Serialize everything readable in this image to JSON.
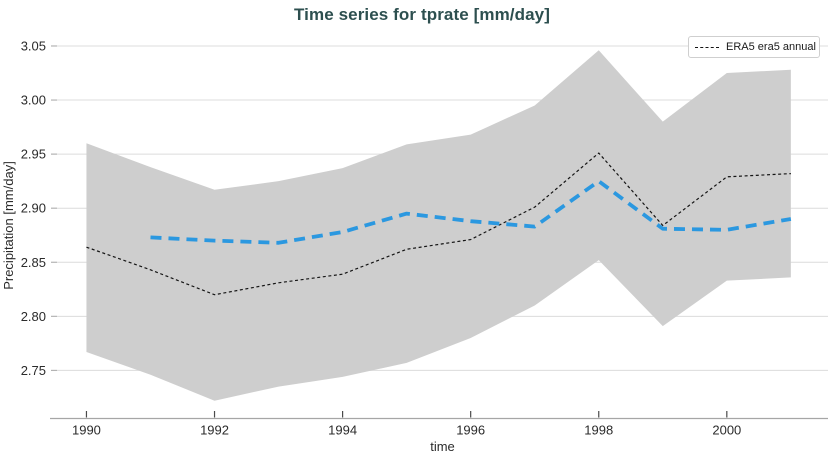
{
  "title": "Time series for tprate [mm/day]",
  "legend": {
    "label": "ERA5 era5 annual"
  },
  "colors": {
    "title": "#2d4f4f",
    "era5_line": "#141414",
    "blue_line": "#2b98e0",
    "band_fill": "#cecece",
    "gridline": "#dcdcdc",
    "axis_spine": "#a6a6a6",
    "tick_label": "#2b2b2b"
  },
  "chart_data": {
    "type": "line",
    "title": "Time series for tprate [mm/day]",
    "xlabel": "time",
    "ylabel": "Precipitation [mm/day]",
    "x": [
      1990,
      1991,
      1992,
      1993,
      1994,
      1995,
      1996,
      1997,
      1998,
      1999,
      2000,
      2001
    ],
    "series": [
      {
        "name": "ERA5 era5 annual",
        "color": "#141414",
        "line_style": "dashed",
        "line_width": 1.2,
        "dash_pattern": "3 2.6",
        "values": [
          2.864,
          2.843,
          2.82,
          2.831,
          2.839,
          2.862,
          2.871,
          2.901,
          2.951,
          2.884,
          2.929,
          2.932
        ]
      },
      {
        "name": "",
        "color": "#2b98e0",
        "line_style": "dashed",
        "line_width": 3.8,
        "dash_pattern": "11 7",
        "values": [
          null,
          2.873,
          2.87,
          2.868,
          2.878,
          2.895,
          2.888,
          2.883,
          2.925,
          2.881,
          2.88,
          2.89
        ]
      }
    ],
    "band": {
      "color": "#cecece",
      "upper": [
        2.96,
        2.938,
        2.917,
        2.925,
        2.937,
        2.959,
        2.968,
        2.995,
        3.046,
        2.98,
        3.025,
        3.028
      ],
      "lower": [
        2.767,
        2.746,
        2.722,
        2.735,
        2.744,
        2.757,
        2.78,
        2.81,
        2.852,
        2.791,
        2.833,
        2.836
      ]
    },
    "xticks": [
      "1990",
      "1992",
      "1994",
      "1996",
      "1998",
      "2000"
    ],
    "yticks": [
      "2.75",
      "2.80",
      "2.85",
      "2.90",
      "2.95",
      "3.00",
      "3.05"
    ],
    "xlim": [
      1989.54,
      2001.58
    ],
    "ylim": [
      2.706,
      3.062
    ],
    "grid": "horizontal",
    "legend_position": "top-right"
  }
}
